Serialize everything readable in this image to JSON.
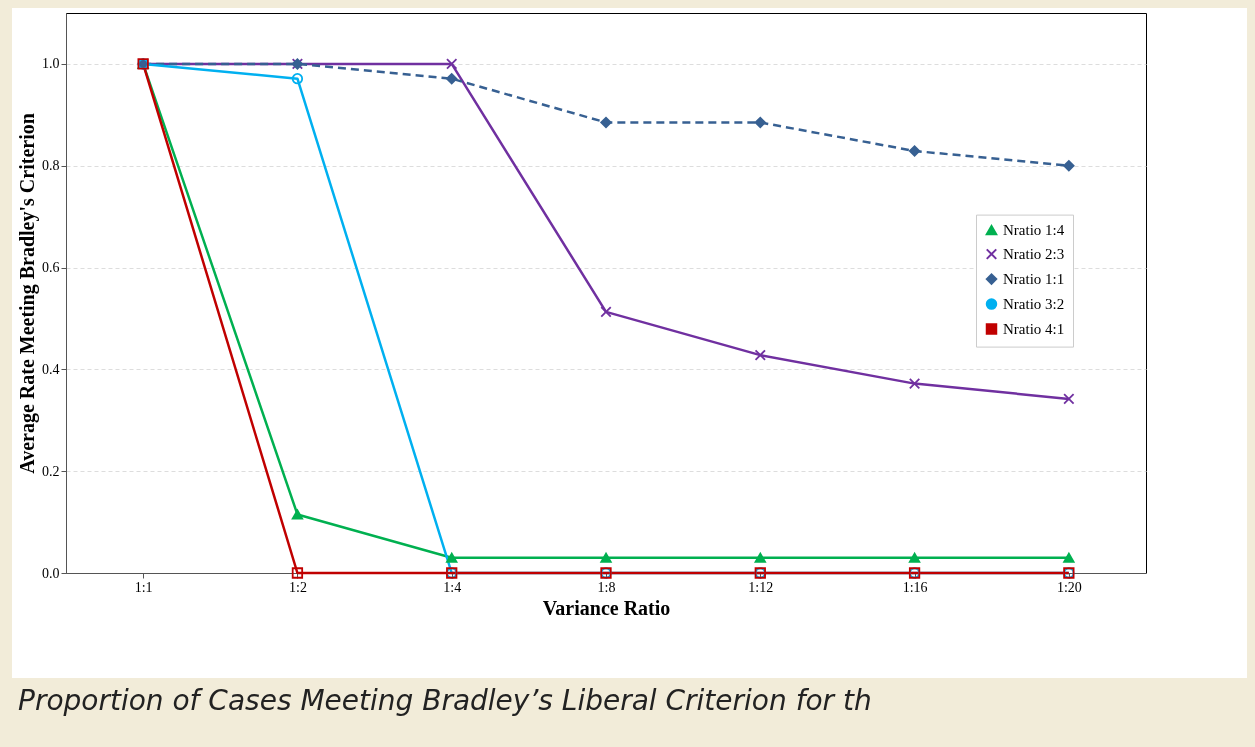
{
  "chart_data": {
    "type": "line",
    "xlabel": "Variance Ratio",
    "ylabel": "Average Rate Meeting Bradley's Criterion",
    "categories": [
      "1:1",
      "1:2",
      "1:4",
      "1:8",
      "1:12",
      "1:16",
      "1:20"
    ],
    "series": [
      {
        "name": "Nratio 1:4",
        "color": "#00b050",
        "marker": "triangle",
        "line_style": "solid",
        "values": [
          1.0,
          0.115,
          0.03,
          0.03,
          0.03,
          0.03,
          0.03
        ]
      },
      {
        "name": "Nratio 2:3",
        "color": "#7030a0",
        "marker": "cross",
        "line_style": "solid",
        "values": [
          1.0,
          1.0,
          1.0,
          0.513,
          0.428,
          0.372,
          0.342
        ]
      },
      {
        "name": "Nratio 1:1",
        "color": "#376092",
        "marker": "diamond",
        "line_style": "dashed",
        "values": [
          1.0,
          1.0,
          0.971,
          0.885,
          0.885,
          0.829,
          0.8
        ]
      },
      {
        "name": "Nratio 3:2",
        "color": "#00b0f0",
        "marker": "circle",
        "line_style": "solid",
        "values": [
          1.0,
          0.971,
          0.0,
          0.0,
          0.0,
          0.0,
          0.0
        ]
      },
      {
        "name": "Nratio 4:1",
        "color": "#c00000",
        "marker": "square",
        "line_style": "solid",
        "values": [
          1.0,
          0.0,
          0.0,
          0.0,
          0.0,
          0.0,
          0.0
        ]
      }
    ],
    "ylim": [
      0,
      1.1
    ],
    "yticks": [
      {
        "value": 0,
        "label": "0.0"
      },
      {
        "value": 0.2,
        "label": "0.2"
      },
      {
        "value": 0.4,
        "label": "0.4"
      },
      {
        "value": 0.6,
        "label": "0.6"
      },
      {
        "value": 0.8,
        "label": "0.8"
      },
      {
        "value": 1,
        "label": "1.0"
      }
    ],
    "grid": "y",
    "legend": "right",
    "annotations": [
      "Proportion of Cases Meeting Bradley’s Liberal Criterion for th"
    ]
  }
}
